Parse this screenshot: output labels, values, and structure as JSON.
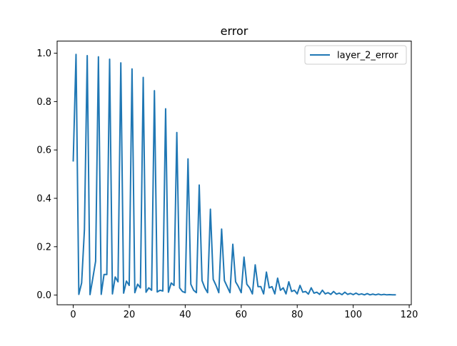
{
  "chart_data": {
    "type": "line",
    "title": "error",
    "xlabel": "",
    "ylabel": "",
    "xlim": [
      -5.75,
      120.75
    ],
    "ylim": [
      -0.04,
      1.05
    ],
    "xticks": [
      0,
      20,
      40,
      60,
      80,
      100,
      120
    ],
    "yticks": [
      0.0,
      0.2,
      0.4,
      0.6,
      0.8,
      1.0
    ],
    "xtick_labels": [
      "0",
      "20",
      "40",
      "60",
      "80",
      "100",
      "120"
    ],
    "ytick_labels": [
      "0.0",
      "0.2",
      "0.4",
      "0.6",
      "0.8",
      "1.0"
    ],
    "grid": false,
    "legend_position": "top-right",
    "series": [
      {
        "name": "layer_2_error",
        "color": "#1f77b4",
        "x": [
          0,
          1,
          2,
          3,
          4,
          5,
          6,
          7,
          8,
          9,
          10,
          11,
          12,
          13,
          14,
          15,
          16,
          17,
          18,
          19,
          20,
          21,
          22,
          23,
          24,
          25,
          26,
          27,
          28,
          29,
          30,
          31,
          32,
          33,
          34,
          35,
          36,
          37,
          38,
          39,
          40,
          41,
          42,
          43,
          44,
          45,
          46,
          47,
          48,
          49,
          50,
          51,
          52,
          53,
          54,
          55,
          56,
          57,
          58,
          59,
          60,
          61,
          62,
          63,
          64,
          65,
          66,
          67,
          68,
          69,
          70,
          71,
          72,
          73,
          74,
          75,
          76,
          77,
          78,
          79,
          80,
          81,
          82,
          83,
          84,
          85,
          86,
          87,
          88,
          89,
          90,
          91,
          92,
          93,
          94,
          95,
          96,
          97,
          98,
          99,
          100,
          101,
          102,
          103,
          104,
          105,
          106,
          107,
          108,
          109,
          110,
          111,
          112,
          113,
          114,
          115
        ],
        "y": [
          0.555,
          0.995,
          0.003,
          0.05,
          0.27,
          0.99,
          0.002,
          0.07,
          0.14,
          0.985,
          0.003,
          0.085,
          0.085,
          0.975,
          0.005,
          0.075,
          0.055,
          0.96,
          0.008,
          0.058,
          0.04,
          0.935,
          0.01,
          0.045,
          0.03,
          0.9,
          0.012,
          0.03,
          0.02,
          0.845,
          0.013,
          0.02,
          0.017,
          0.77,
          0.012,
          0.05,
          0.04,
          0.672,
          0.03,
          0.015,
          0.01,
          0.563,
          0.045,
          0.02,
          0.01,
          0.455,
          0.06,
          0.03,
          0.01,
          0.355,
          0.065,
          0.04,
          0.01,
          0.273,
          0.06,
          0.035,
          0.01,
          0.21,
          0.055,
          0.035,
          0.01,
          0.157,
          0.045,
          0.03,
          0.005,
          0.125,
          0.035,
          0.035,
          0.005,
          0.095,
          0.03,
          0.035,
          0.005,
          0.07,
          0.02,
          0.03,
          0.005,
          0.055,
          0.015,
          0.02,
          0.005,
          0.04,
          0.012,
          0.015,
          0.004,
          0.03,
          0.008,
          0.012,
          0.003,
          0.02,
          0.005,
          0.01,
          0.003,
          0.015,
          0.004,
          0.008,
          0.002,
          0.012,
          0.003,
          0.007,
          0.002,
          0.008,
          0.002,
          0.005,
          0.001,
          0.006,
          0.001,
          0.004,
          0.001,
          0.004,
          0.001,
          0.003,
          0.001,
          0.002,
          0.001,
          0.001
        ]
      }
    ]
  }
}
